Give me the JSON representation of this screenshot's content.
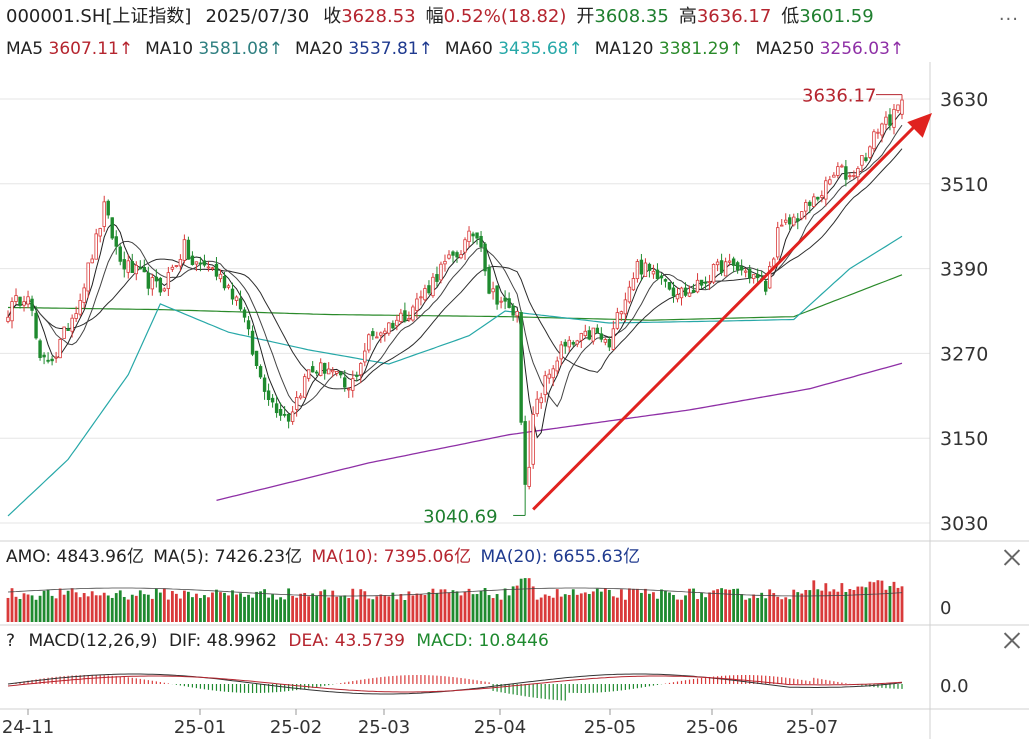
{
  "header": {
    "code": "000001.SH[上证指数]",
    "date": "2025/07/30",
    "close_label": "收",
    "close_value": "3628.53",
    "change_label": "幅",
    "change_value": "0.52%(18.82)",
    "open_label": "开",
    "open_value": "3608.35",
    "high_label": "高",
    "high_value": "3636.17",
    "low_label": "低",
    "low_value": "3601.59",
    "more": "..."
  },
  "ma_row": [
    {
      "label": "MA5",
      "value": "3607.11↑",
      "color": "#b5252f"
    },
    {
      "label": "MA10",
      "value": "3581.08↑",
      "color": "#2f7f80"
    },
    {
      "label": "MA20",
      "value": "3537.81↑",
      "color": "#1f3a8f"
    },
    {
      "label": "MA60",
      "value": "3435.68↑",
      "color": "#27a8a8"
    },
    {
      "label": "MA120",
      "value": "3381.29↑",
      "color": "#2a8a2a"
    },
    {
      "label": "MA250",
      "value": "3256.03↑",
      "color": "#8e2fa6"
    }
  ],
  "amo_row": {
    "amo_label": "AMO:",
    "amo_value": "4843.96亿",
    "ma5_label": "MA(5):",
    "ma5_value": "7426.23亿",
    "ma10_label": "MA(10):",
    "ma10_value": "7395.06亿",
    "ma20_label": "MA(20):",
    "ma20_value": "6655.63亿"
  },
  "macd_row": {
    "help": "?",
    "label": "MACD(12,26,9)",
    "dif_label": "DIF:",
    "dif_value": "48.9962",
    "dea_label": "DEA:",
    "dea_value": "43.5739",
    "macd_label": "MACD:",
    "macd_value": "10.8446"
  },
  "colors": {
    "up": "#d93a3a",
    "down": "#1f8a2f",
    "ma5": "#333333",
    "ma10": "#555555",
    "ma20": "#444444",
    "ma60": "#27a8a8",
    "ma120": "#2a8a2a",
    "ma250": "#8e2fa6",
    "arrow": "#e0221f",
    "axis_text": "#333333",
    "grid": "#e6e6e6",
    "header_red": "#b5252f",
    "header_green": "#1f7f2f"
  },
  "chart_data": [
    {
      "type": "candlestick",
      "title": "000001.SH[上证指数]",
      "x_ticks": [
        "24-11",
        "25-01",
        "25-02",
        "25-03",
        "25-04",
        "25-05",
        "25-06",
        "25-07"
      ],
      "y_ticks": [
        3630,
        3510,
        3390,
        3270,
        3150,
        3030
      ],
      "ylim": [
        3000,
        3660
      ],
      "annotations": [
        {
          "text": "3636.17",
          "value": 3636.17,
          "kind": "high"
        },
        {
          "text": "3040.69",
          "value": 3040.69,
          "kind": "low"
        }
      ],
      "trend_arrow": {
        "from_value": 3040.69,
        "to_value": 3625
      },
      "anchors": [
        {
          "i": 0,
          "v": 3330
        },
        {
          "i": 5,
          "v": 3360
        },
        {
          "i": 8,
          "v": 3255
        },
        {
          "i": 12,
          "v": 3270
        },
        {
          "i": 18,
          "v": 3350
        },
        {
          "i": 22,
          "v": 3430
        },
        {
          "i": 24,
          "v": 3475
        },
        {
          "i": 28,
          "v": 3400
        },
        {
          "i": 33,
          "v": 3380
        },
        {
          "i": 38,
          "v": 3360
        },
        {
          "i": 44,
          "v": 3420
        },
        {
          "i": 46,
          "v": 3395
        },
        {
          "i": 50,
          "v": 3395
        },
        {
          "i": 55,
          "v": 3365
        },
        {
          "i": 58,
          "v": 3340
        },
        {
          "i": 62,
          "v": 3250
        },
        {
          "i": 66,
          "v": 3200
        },
        {
          "i": 70,
          "v": 3180
        },
        {
          "i": 75,
          "v": 3245
        },
        {
          "i": 80,
          "v": 3250
        },
        {
          "i": 85,
          "v": 3215
        },
        {
          "i": 90,
          "v": 3290
        },
        {
          "i": 95,
          "v": 3310
        },
        {
          "i": 100,
          "v": 3330
        },
        {
          "i": 105,
          "v": 3365
        },
        {
          "i": 108,
          "v": 3390
        },
        {
          "i": 112,
          "v": 3410
        },
        {
          "i": 116,
          "v": 3440
        },
        {
          "i": 118,
          "v": 3430
        },
        {
          "i": 120,
          "v": 3360
        },
        {
          "i": 123,
          "v": 3345
        },
        {
          "i": 125,
          "v": 3330
        },
        {
          "i": 127,
          "v": 3325
        },
        {
          "i": 128,
          "v": 3180
        },
        {
          "i": 129,
          "v": 3095
        },
        {
          "i": 130,
          "v": 3100
        },
        {
          "i": 131,
          "v": 3180
        },
        {
          "i": 134,
          "v": 3230
        },
        {
          "i": 138,
          "v": 3275
        },
        {
          "i": 142,
          "v": 3285
        },
        {
          "i": 146,
          "v": 3300
        },
        {
          "i": 150,
          "v": 3280
        },
        {
          "i": 153,
          "v": 3340
        },
        {
          "i": 157,
          "v": 3395
        },
        {
          "i": 160,
          "v": 3385
        },
        {
          "i": 163,
          "v": 3385
        },
        {
          "i": 166,
          "v": 3360
        },
        {
          "i": 170,
          "v": 3355
        },
        {
          "i": 174,
          "v": 3375
        },
        {
          "i": 178,
          "v": 3395
        },
        {
          "i": 182,
          "v": 3390
        },
        {
          "i": 186,
          "v": 3380
        },
        {
          "i": 189,
          "v": 3362
        },
        {
          "i": 192,
          "v": 3440
        },
        {
          "i": 196,
          "v": 3460
        },
        {
          "i": 200,
          "v": 3480
        },
        {
          "i": 204,
          "v": 3505
        },
        {
          "i": 207,
          "v": 3530
        },
        {
          "i": 210,
          "v": 3520
        },
        {
          "i": 213,
          "v": 3545
        },
        {
          "i": 215,
          "v": 3560
        },
        {
          "i": 217,
          "v": 3590
        },
        {
          "i": 219,
          "v": 3600
        },
        {
          "i": 221,
          "v": 3605
        },
        {
          "i": 223,
          "v": 3628.53
        }
      ],
      "ma60_anchors": [
        {
          "i": 0,
          "v": 3040
        },
        {
          "i": 15,
          "v": 3120
        },
        {
          "i": 30,
          "v": 3240
        },
        {
          "i": 38,
          "v": 3340
        },
        {
          "i": 55,
          "v": 3300
        },
        {
          "i": 75,
          "v": 3275
        },
        {
          "i": 95,
          "v": 3255
        },
        {
          "i": 115,
          "v": 3295
        },
        {
          "i": 124,
          "v": 3330
        },
        {
          "i": 150,
          "v": 3313
        },
        {
          "i": 180,
          "v": 3316
        },
        {
          "i": 196,
          "v": 3318
        },
        {
          "i": 210,
          "v": 3390
        },
        {
          "i": 223,
          "v": 3435.68
        }
      ],
      "ma120_anchors": [
        {
          "i": 0,
          "v": 3335
        },
        {
          "i": 38,
          "v": 3332
        },
        {
          "i": 80,
          "v": 3325
        },
        {
          "i": 125,
          "v": 3322
        },
        {
          "i": 160,
          "v": 3317
        },
        {
          "i": 196,
          "v": 3322
        },
        {
          "i": 223,
          "v": 3381.29
        }
      ],
      "ma250_anchors": [
        {
          "i": 52,
          "v": 3062
        },
        {
          "i": 90,
          "v": 3115
        },
        {
          "i": 125,
          "v": 3155
        },
        {
          "i": 170,
          "v": 3190
        },
        {
          "i": 200,
          "v": 3220
        },
        {
          "i": 223,
          "v": 3256.03
        }
      ]
    },
    {
      "type": "bar",
      "title": "AMO",
      "y_ticks": [
        0
      ],
      "last_value_yi": 4843.96,
      "ma5_yi": 7426.23,
      "ma10_yi": 7395.06,
      "ma20_yi": 6655.63
    },
    {
      "type": "bar",
      "title": "MACD(12,26,9)",
      "y_ticks": [
        "0.0"
      ],
      "dif": 48.9962,
      "dea": 43.5739,
      "macd": 10.8446
    }
  ]
}
